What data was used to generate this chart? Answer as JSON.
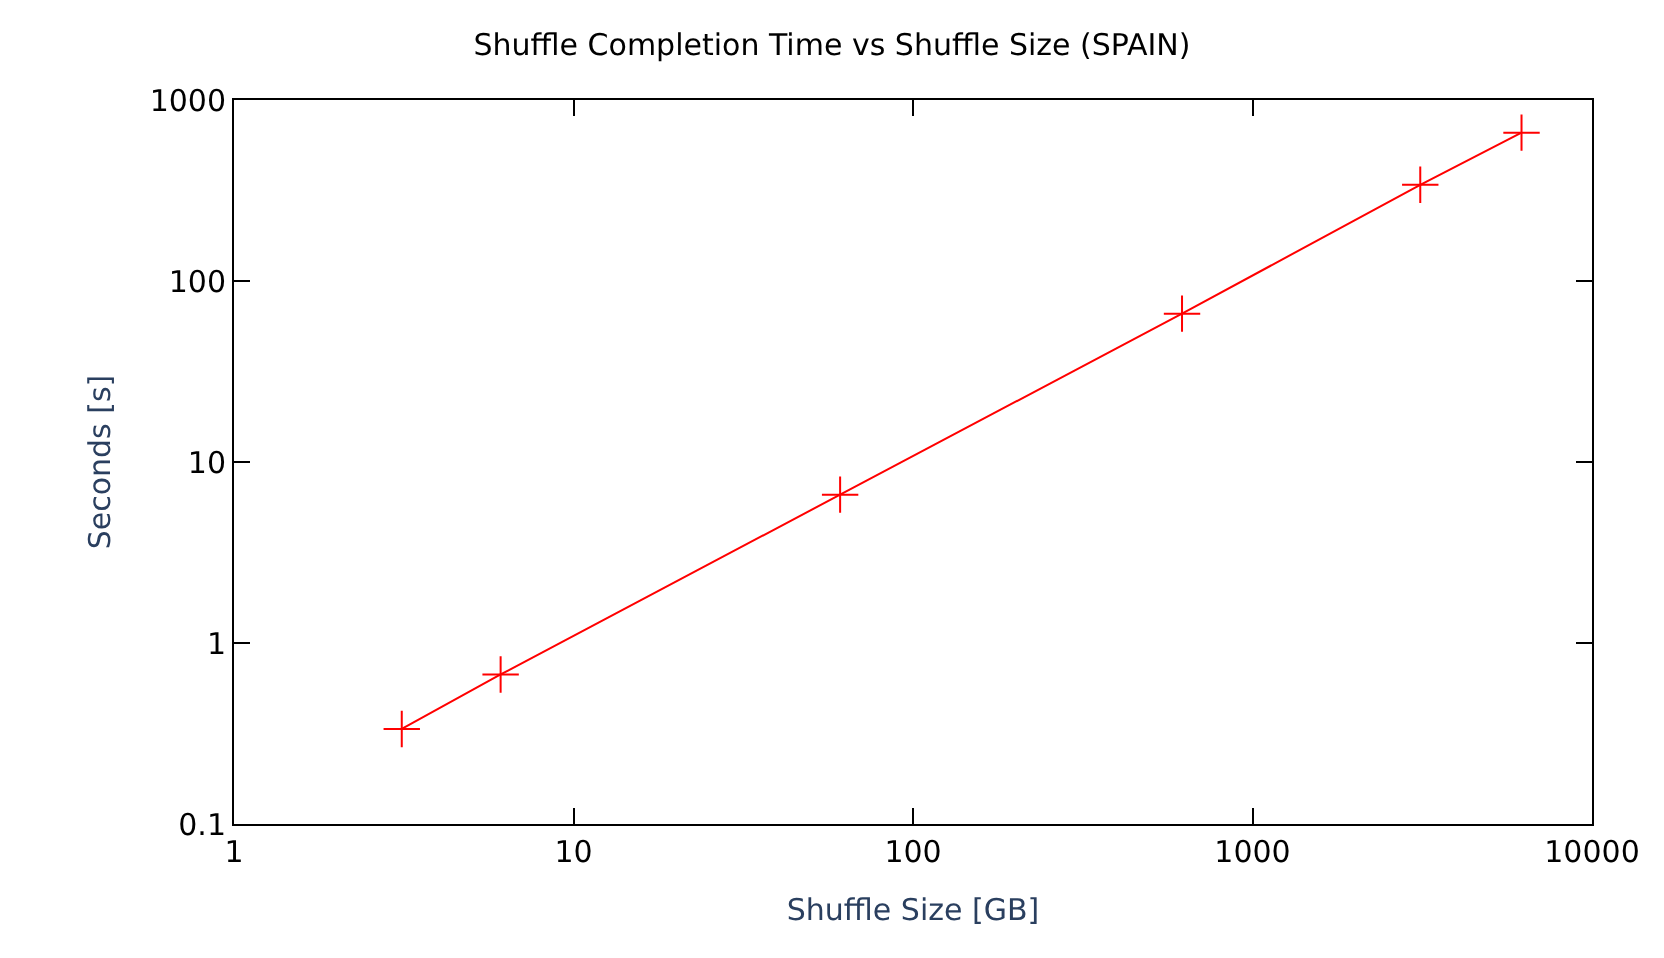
{
  "chart_data": {
    "type": "line",
    "title": "Shuffle Completion Time vs Shuffle Size (SPAIN)",
    "xlabel": "Shuffle Size [GB]",
    "ylabel": "Seconds [s]",
    "x": [
      3.12,
      6.1,
      61,
      620,
      3120,
      6200
    ],
    "series": [
      {
        "color": "#ff0000",
        "values": [
          0.335,
          0.67,
          6.6,
          66,
          340,
          660
        ]
      }
    ],
    "log": "xy",
    "xlim": [
      1,
      10000
    ],
    "ylim": [
      0.1,
      1000
    ],
    "xticks": [
      1,
      10,
      100,
      1000,
      10000
    ],
    "yticks": [
      0.1,
      1,
      10,
      100,
      1000
    ],
    "grid": false,
    "legend": false,
    "marker": "cross",
    "line_style": "solid"
  }
}
